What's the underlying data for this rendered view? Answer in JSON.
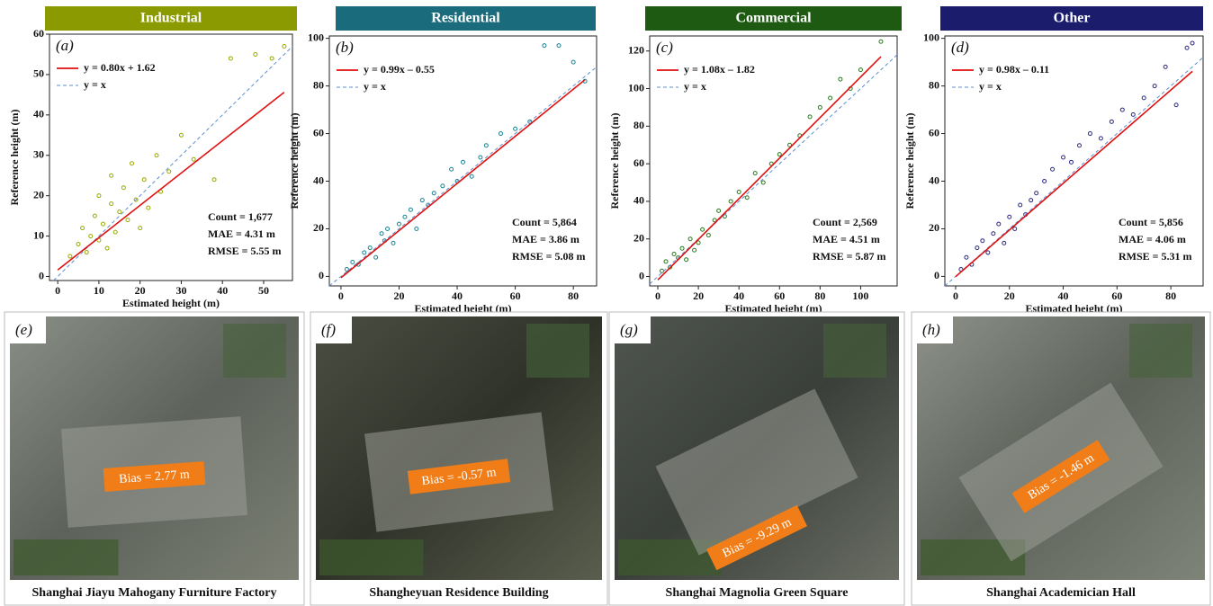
{
  "chart_data": [
    {
      "type": "scatter",
      "header": "Industrial",
      "header_color": "#8a9a00",
      "panel": "(a)",
      "xlabel": "Estimated height (m)",
      "ylabel": "Reference height (m)",
      "color": "#9aaa00",
      "x": [
        3,
        5,
        6,
        7,
        8,
        9,
        10,
        10,
        11,
        12,
        13,
        13,
        14,
        15,
        16,
        17,
        18,
        19,
        20,
        21,
        22,
        24,
        25,
        27,
        30,
        33,
        38,
        42,
        48,
        52,
        55
      ],
      "y": [
        5,
        8,
        12,
        6,
        10,
        15,
        9,
        20,
        13,
        7,
        18,
        25,
        11,
        16,
        22,
        14,
        28,
        19,
        12,
        24,
        17,
        30,
        21,
        26,
        35,
        29,
        24,
        54,
        55,
        54,
        57
      ],
      "xlim": [
        -2,
        57
      ],
      "ylim": [
        -1,
        60
      ],
      "xticks": [
        0,
        10,
        20,
        30,
        40,
        50
      ],
      "yticks": [
        0,
        10,
        20,
        30,
        40,
        50,
        60
      ],
      "fit": {
        "slope": 0.8,
        "intercept": 1.62,
        "label": "y = 0.80x + 1.62"
      },
      "identity_label": "y = x",
      "annotations": [
        "Count = 1,677",
        "MAE = 4.31 m",
        "RMSE = 5.55 m"
      ]
    },
    {
      "type": "scatter",
      "header": "Residential",
      "header_color": "#1a6c7c",
      "panel": "(b)",
      "xlabel": "Estimated height (m)",
      "ylabel": "Reference height (m)",
      "color": "#1a8494",
      "x": [
        2,
        4,
        6,
        8,
        10,
        12,
        14,
        15,
        16,
        18,
        20,
        22,
        24,
        26,
        28,
        30,
        32,
        35,
        38,
        40,
        42,
        45,
        48,
        50,
        55,
        60,
        65,
        70,
        75,
        80,
        84
      ],
      "y": [
        3,
        6,
        5,
        10,
        12,
        8,
        18,
        15,
        20,
        14,
        22,
        25,
        28,
        20,
        32,
        30,
        35,
        38,
        45,
        40,
        48,
        42,
        50,
        55,
        60,
        62,
        65,
        97,
        97,
        90,
        82
      ],
      "xlim": [
        -4,
        88
      ],
      "ylim": [
        -4,
        101
      ],
      "xticks": [
        0,
        20,
        40,
        60,
        80
      ],
      "yticks": [
        0,
        20,
        40,
        60,
        80,
        100
      ],
      "fit": {
        "slope": 0.99,
        "intercept": -0.55,
        "label": "y = 0.99x – 0.55"
      },
      "identity_label": "y = x",
      "annotations": [
        "Count = 5,864",
        "MAE = 3.86 m",
        "RMSE = 5.08 m"
      ]
    },
    {
      "type": "scatter",
      "header": "Commercial",
      "header_color": "#1e5a12",
      "panel": "(c)",
      "xlabel": "Estimated height (m)",
      "ylabel": "Reference height (m)",
      "color": "#2a7a20",
      "x": [
        2,
        4,
        6,
        8,
        10,
        12,
        14,
        16,
        18,
        20,
        22,
        25,
        28,
        30,
        33,
        36,
        40,
        44,
        48,
        52,
        56,
        60,
        65,
        70,
        75,
        80,
        85,
        90,
        95,
        100,
        110
      ],
      "y": [
        3,
        8,
        5,
        12,
        10,
        15,
        9,
        20,
        14,
        18,
        25,
        22,
        30,
        35,
        32,
        40,
        45,
        42,
        55,
        50,
        60,
        65,
        70,
        75,
        85,
        90,
        95,
        105,
        100,
        110,
        125
      ],
      "xlim": [
        -4,
        118
      ],
      "ylim": [
        -5,
        128
      ],
      "xticks": [
        0,
        20,
        40,
        60,
        80,
        100
      ],
      "yticks": [
        0,
        20,
        40,
        60,
        80,
        100,
        120
      ],
      "fit": {
        "slope": 1.08,
        "intercept": -1.82,
        "label": "y = 1.08x – 1.82"
      },
      "identity_label": "y = x",
      "annotations": [
        "Count = 2,569",
        "MAE = 4.51 m",
        "RMSE = 5.87 m"
      ]
    },
    {
      "type": "scatter",
      "header": "Other",
      "header_color": "#1c1c6c",
      "panel": "(d)",
      "xlabel": "Estimated height (m)",
      "ylabel": "Reference height (m)",
      "color": "#2a2a84",
      "x": [
        2,
        4,
        6,
        8,
        10,
        12,
        14,
        16,
        18,
        20,
        22,
        24,
        26,
        28,
        30,
        33,
        36,
        40,
        43,
        46,
        50,
        54,
        58,
        62,
        66,
        70,
        74,
        78,
        82,
        86,
        88
      ],
      "y": [
        3,
        8,
        5,
        12,
        15,
        10,
        18,
        22,
        14,
        25,
        20,
        30,
        26,
        32,
        35,
        40,
        45,
        50,
        48,
        55,
        60,
        58,
        65,
        70,
        68,
        75,
        80,
        88,
        72,
        96,
        98
      ],
      "xlim": [
        -4,
        92
      ],
      "ylim": [
        -4,
        101
      ],
      "xticks": [
        0,
        20,
        40,
        60,
        80
      ],
      "yticks": [
        0,
        20,
        40,
        60,
        80,
        100
      ],
      "fit": {
        "slope": 0.98,
        "intercept": -0.11,
        "label": "y = 0.98x – 0.11"
      },
      "identity_label": "y = x",
      "annotations": [
        "Count = 5,856",
        "MAE = 4.06 m",
        "RMSE = 5.31 m"
      ]
    }
  ],
  "photos": [
    {
      "panel": "(e)",
      "bias_label": "Bias = 2.77 m",
      "caption": "Shanghai Jiayu Mahogany Furniture Factory"
    },
    {
      "panel": "(f)",
      "bias_label": "Bias = -0.57 m",
      "caption": "Shangheyuan Residence Building"
    },
    {
      "panel": "(g)",
      "bias_label": "Bias = -9.29 m",
      "caption": "Shanghai  Magnolia Green Square"
    },
    {
      "panel": "(h)",
      "bias_label": "Bias = -1.46 m",
      "caption": "Shanghai Academician Hall"
    }
  ]
}
